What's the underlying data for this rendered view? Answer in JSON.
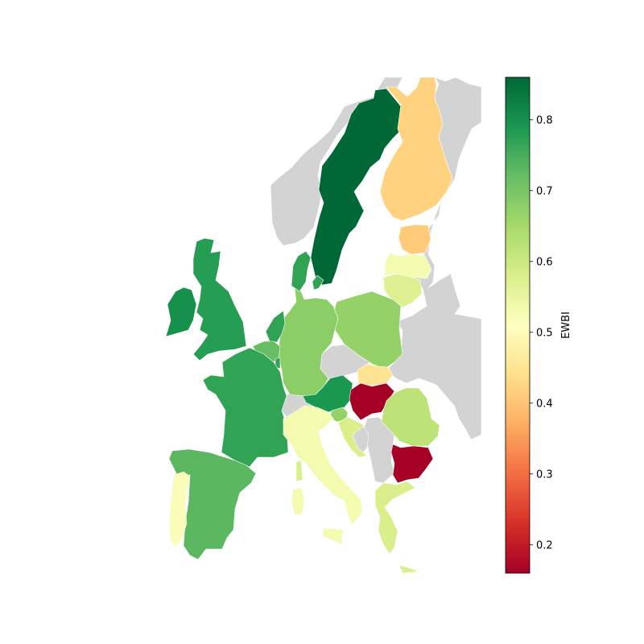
{
  "chart_data": {
    "type": "choropleth",
    "region": "Europe",
    "colormap": "RdYlGn",
    "no_data_color": "#d3d3d3",
    "colorbar": {
      "label": "EWBI",
      "range": [
        0.16,
        0.86
      ],
      "ticks": [
        0.2,
        0.3,
        0.4,
        0.5,
        0.6,
        0.7,
        0.8
      ],
      "tick_labels": [
        "0.2",
        "0.3",
        "0.4",
        "0.5",
        "0.6",
        "0.7",
        "0.8"
      ],
      "position": "right"
    },
    "countries": [
      {
        "code": "SE",
        "value": 0.86
      },
      {
        "code": "FI",
        "value": 0.42
      },
      {
        "code": "EE",
        "value": 0.41
      },
      {
        "code": "LV",
        "value": 0.53
      },
      {
        "code": "LT",
        "value": 0.57
      },
      {
        "code": "PL",
        "value": 0.67
      },
      {
        "code": "DE",
        "value": 0.68
      },
      {
        "code": "DK",
        "value": 0.77
      },
      {
        "code": "NL",
        "value": 0.77
      },
      {
        "code": "BE",
        "value": 0.72
      },
      {
        "code": "LU",
        "value": 0.77
      },
      {
        "code": "FR",
        "value": 0.77
      },
      {
        "code": "ES",
        "value": 0.73
      },
      {
        "code": "PT",
        "value": 0.52
      },
      {
        "code": "IE",
        "value": 0.8
      },
      {
        "code": "GB",
        "value": 0.78
      },
      {
        "code": "AT",
        "value": 0.79
      },
      {
        "code": "SK",
        "value": 0.45
      },
      {
        "code": "HU",
        "value": 0.16
      },
      {
        "code": "RO",
        "value": 0.62
      },
      {
        "code": "BG",
        "value": 0.16
      },
      {
        "code": "SI",
        "value": 0.67
      },
      {
        "code": "HR",
        "value": 0.58
      },
      {
        "code": "IT",
        "value": 0.53
      },
      {
        "code": "GR",
        "value": 0.58
      },
      {
        "code": "CY",
        "value": 0.58
      },
      {
        "code": "CH",
        "value": null
      },
      {
        "code": "CZ",
        "value": null
      },
      {
        "code": "NO",
        "value": null
      },
      {
        "code": "BY",
        "value": null
      },
      {
        "code": "UA",
        "value": null
      },
      {
        "code": "RS",
        "value": null
      },
      {
        "code": "BA",
        "value": null
      },
      {
        "code": "MD",
        "value": null
      },
      {
        "code": "RU",
        "value": null
      }
    ]
  }
}
